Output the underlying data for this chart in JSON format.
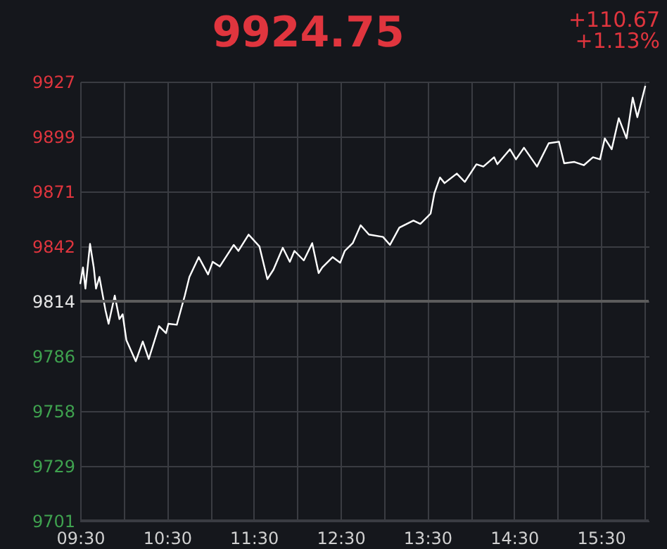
{
  "chart_data": {
    "type": "line",
    "title": "9924.75",
    "annotations": [
      "+110.67",
      "+1.13%"
    ],
    "x": [
      9.5,
      9.532,
      9.56,
      9.613,
      9.656,
      9.682,
      9.721,
      9.79,
      9.827,
      9.898,
      9.952,
      9.989,
      10.032,
      10.14,
      10.221,
      10.29,
      10.408,
      10.489,
      10.516,
      10.613,
      10.705,
      10.758,
      10.866,
      10.973,
      11.027,
      11.108,
      11.269,
      11.323,
      11.44,
      11.565,
      11.656,
      11.726,
      11.834,
      11.915,
      11.968,
      12.076,
      12.173,
      12.247,
      12.29,
      12.408,
      12.495,
      12.548,
      12.64,
      12.731,
      12.827,
      12.989,
      13.069,
      13.177,
      13.339,
      13.419,
      13.537,
      13.581,
      13.645,
      13.698,
      13.839,
      13.931,
      14.065,
      14.145,
      14.269,
      14.306,
      14.452,
      14.521,
      14.613,
      14.763,
      14.898,
      15.016,
      15.076,
      15.194,
      15.302,
      15.408,
      15.489,
      15.544,
      15.624,
      15.705,
      15.795,
      15.866,
      15.919,
      16.011
    ],
    "series": [
      {
        "color": "#ffffff",
        "values": [
          9822.9,
          9831.4,
          9820.5,
          9843.5,
          9831.4,
          9820.5,
          9826.5,
          9809.6,
          9802.4,
          9816.9,
          9804.8,
          9807.3,
          9794,
          9783.1,
          9793.3,
          9784.3,
          9801.2,
          9797.6,
          9802.4,
          9801.9,
          9816.9,
          9826.5,
          9836.7,
          9827.8,
          9834.3,
          9831.9,
          9843,
          9839.9,
          9848.3,
          9842.2,
          9825.4,
          9830.2,
          9841.5,
          9834.3,
          9839.9,
          9835,
          9843.9,
          9828.5,
          9831.4,
          9836.7,
          9833.8,
          9839.9,
          9843.9,
          9853.1,
          9848.3,
          9847.1,
          9843,
          9851.9,
          9855.5,
          9853.8,
          9859.1,
          9869.6,
          9877.7,
          9874.8,
          9879.7,
          9875.4,
          9884.5,
          9883.3,
          9888.1,
          9884.5,
          9892.2,
          9887,
          9893,
          9883.3,
          9895.3,
          9896.1,
          9885,
          9885.7,
          9884,
          9888.1,
          9887,
          9897.8,
          9892.2,
          9908.2,
          9897.8,
          9918.8,
          9908.7,
          9924.8
        ]
      }
    ],
    "xlim": [
      9.5,
      16.05
    ],
    "xticks": [
      {
        "value": 9.5,
        "label": "09:30"
      },
      {
        "value": 10,
        "label": null
      },
      {
        "value": 10.5,
        "label": "10:30"
      },
      {
        "value": 11,
        "label": null
      },
      {
        "value": 11.5,
        "label": "11:30"
      },
      {
        "value": 12,
        "label": null
      },
      {
        "value": 12.5,
        "label": "12:30"
      },
      {
        "value": 13,
        "label": null
      },
      {
        "value": 13.5,
        "label": "13:30"
      },
      {
        "value": 14,
        "label": null
      },
      {
        "value": 14.5,
        "label": "14:30"
      },
      {
        "value": 15,
        "label": null
      },
      {
        "value": 15.5,
        "label": "15:30"
      },
      {
        "value": 16,
        "label": null
      }
    ],
    "ylim": [
      9701,
      9927
    ],
    "yticks": [
      9701,
      {
        "value": 9729.25,
        "label": "9729"
      },
      {
        "value": 9757.5,
        "label": "9758"
      },
      {
        "value": 9785.75,
        "label": "9786"
      },
      9814,
      {
        "value": 9842.25,
        "label": "9842"
      },
      {
        "value": 9870.5,
        "label": "9871"
      },
      {
        "value": 9898.75,
        "label": "9899"
      },
      9927
    ],
    "ref_lines": [
      {
        "axis": "y",
        "value": 9814,
        "color": "#5c5c5c"
      }
    ],
    "grid": true,
    "marker": "none",
    "line_style": "solid"
  }
}
